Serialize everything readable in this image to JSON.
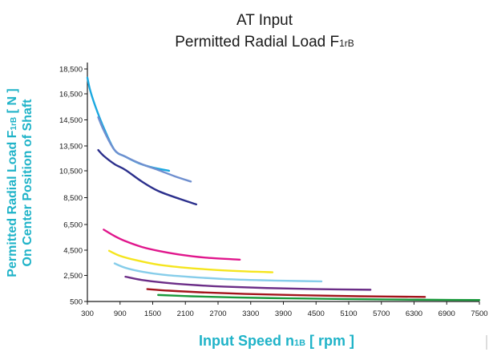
{
  "chart_data": {
    "type": "line",
    "title_line1": "AT Input",
    "title_line2_main": "Permitted Radial Load F",
    "title_line2_sub": "1rB",
    "xlabel_main": "Input Speed n",
    "xlabel_sub": "1B",
    "xlabel_unit": " [ rpm ]",
    "ylabel_line1_main": "Permitted Radial Load F",
    "ylabel_line1_sub": "1rB",
    "ylabel_line1_unit": " [ N ]",
    "ylabel_line2": "On Center Position of Shaft",
    "x_ticks": [
      300,
      900,
      1500,
      2100,
      2700,
      3300,
      3900,
      4500,
      5100,
      5700,
      6300,
      6900,
      7500
    ],
    "x_tick_labels": [
      "300",
      "900",
      "1500",
      "2100",
      "2700",
      "3300",
      "3900",
      "4500",
      "5100",
      "5700",
      "6300",
      "6900",
      "7500"
    ],
    "y_ticks": [
      500,
      2500,
      4500,
      6500,
      8500,
      10500,
      13500,
      14500,
      16500,
      18500
    ],
    "y_tick_labels": [
      "500",
      "2,500",
      "4,500",
      "6,500",
      "8,500",
      "10,500",
      "13,500",
      "14,500",
      "16,500",
      "18,500"
    ],
    "xlim": [
      300,
      7500
    ],
    "ylim": [
      500,
      18500
    ],
    "grid": false,
    "legend": "none",
    "series": [
      {
        "color": "#1aa8e0",
        "x": [
          300,
          350,
          450,
          600,
          800,
          1000,
          1250,
          1500,
          1800
        ],
        "y": [
          17800,
          16800,
          15500,
          14200,
          13000,
          12200,
          11400,
          10900,
          10500
        ]
      },
      {
        "color": "#6f8fcf",
        "x": [
          500,
          600,
          800,
          1000,
          1300,
          1600,
          1900,
          2200
        ],
        "y": [
          14700,
          14100,
          13000,
          12200,
          11300,
          10600,
          10100,
          9700
        ]
      },
      {
        "color": "#2b2f8c",
        "x": [
          500,
          600,
          800,
          1000,
          1300,
          1600,
          2000,
          2300
        ],
        "y": [
          13000,
          12300,
          11300,
          10600,
          9700,
          9000,
          8400,
          8000
        ]
      },
      {
        "color": "#e0168c",
        "x": [
          600,
          800,
          1000,
          1300,
          1600,
          2000,
          2500,
          3100
        ],
        "y": [
          6100,
          5600,
          5200,
          4750,
          4450,
          4150,
          3900,
          3750
        ]
      },
      {
        "color": "#f5e51e",
        "x": [
          700,
          900,
          1200,
          1600,
          2000,
          2600,
          3200,
          3700
        ],
        "y": [
          4450,
          4050,
          3700,
          3350,
          3150,
          2950,
          2820,
          2750
        ]
      },
      {
        "color": "#86cdea",
        "x": [
          800,
          1000,
          1300,
          1700,
          2200,
          2800,
          3500,
          4200,
          4600
        ],
        "y": [
          3450,
          3100,
          2800,
          2550,
          2380,
          2230,
          2130,
          2070,
          2040
        ]
      },
      {
        "color": "#6b2d87",
        "x": [
          1000,
          1300,
          1700,
          2200,
          2800,
          3600,
          4500,
          5500
        ],
        "y": [
          2400,
          2150,
          1950,
          1780,
          1640,
          1530,
          1450,
          1400
        ]
      },
      {
        "color": "#a3131b",
        "x": [
          1400,
          1800,
          2400,
          3200,
          4200,
          5300,
          6500
        ],
        "y": [
          1450,
          1330,
          1200,
          1080,
          980,
          900,
          850
        ]
      },
      {
        "color": "#1a9a3c",
        "x": [
          1600,
          2200,
          3000,
          4000,
          5000,
          6000,
          7000,
          7500
        ],
        "y": [
          1000,
          900,
          810,
          740,
          690,
          650,
          620,
          610
        ]
      }
    ]
  }
}
